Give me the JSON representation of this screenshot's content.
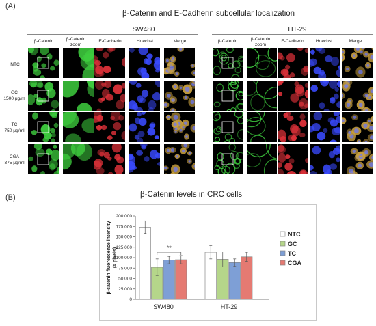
{
  "panel_a": {
    "letter": "(A)",
    "title": "β-Catenin and E-Cadherin subcellular localization",
    "groups": [
      {
        "name": "SW480",
        "columns": [
          "β-Catenin",
          "β-Catenin zoom",
          "E-Cadherin",
          "Hoechst",
          "Merge"
        ],
        "rows": [
          "NTC",
          "GC\n1500 μg/m",
          "TC\n750 μg/ml",
          "CGA\n375 μg/ml"
        ]
      },
      {
        "name": "HT-29",
        "columns": [
          "β-Catenin",
          "β-Catenin zoom",
          "E-Cadherin",
          "Hoechst",
          "Merge"
        ],
        "rows": []
      }
    ]
  },
  "panel_b": {
    "letter": "(B)",
    "title": "β-Catenin levels in CRC cells",
    "significance_label": "**"
  },
  "chart_data": {
    "type": "bar",
    "title": "β-Catenin levels in CRC cells",
    "xlabel": "",
    "ylabel": "β-catenin fluorescence intensity (# pixels)",
    "categories": [
      "SW480",
      "HT-29"
    ],
    "ylim": [
      0,
      200000
    ],
    "yticks": [
      "0",
      "25,000",
      "50,000",
      "75,000",
      "100,000",
      "125,000",
      "150,000",
      "175,000",
      "200,000"
    ],
    "legend_position": "right",
    "series": [
      {
        "name": "NTC",
        "color": "#ffffff",
        "values": [
          173000,
          113000
        ],
        "errors": [
          15000,
          16000
        ]
      },
      {
        "name": "GC",
        "color": "#b5d68a",
        "values": [
          77000,
          96000
        ],
        "errors": [
          20000,
          18000
        ]
      },
      {
        "name": "TC",
        "color": "#7e9fd6",
        "values": [
          94000,
          88000
        ],
        "errors": [
          9000,
          9000
        ]
      },
      {
        "name": "CGA",
        "color": "#e57a72",
        "values": [
          95000,
          102000
        ],
        "errors": [
          10000,
          11000
        ]
      }
    ],
    "annotations": [
      {
        "text": "**",
        "between": "GC-CGA",
        "category": "SW480"
      }
    ]
  }
}
